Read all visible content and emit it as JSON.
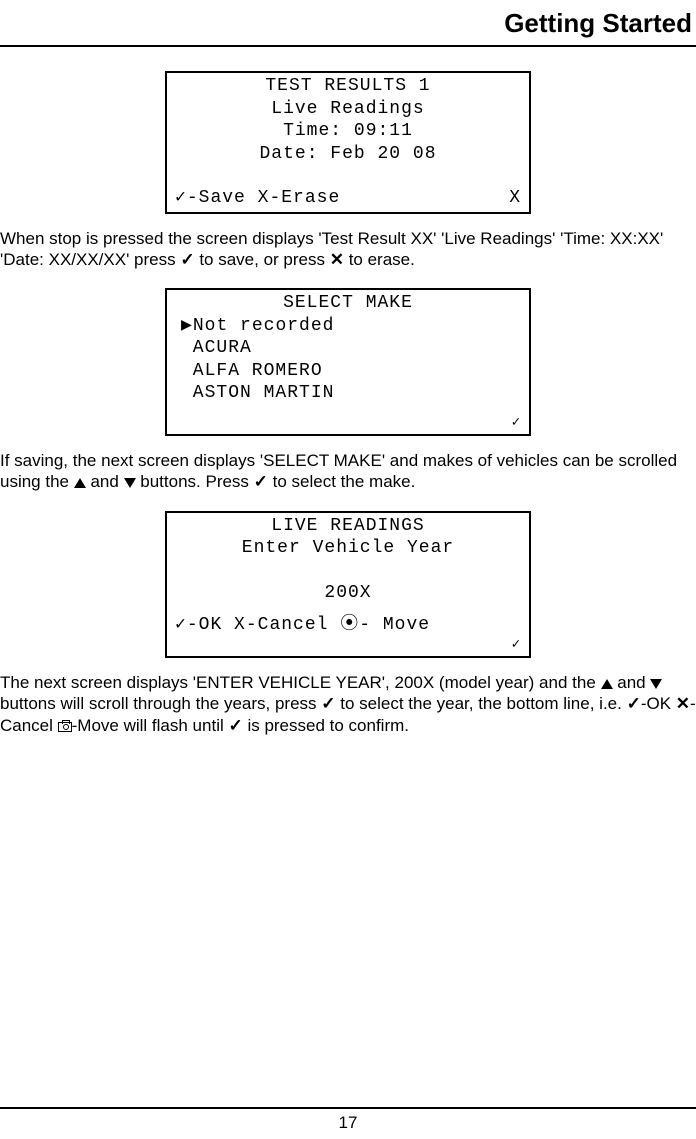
{
  "header": {
    "title": "Getting Started"
  },
  "footer": {
    "page_number": "17"
  },
  "lcd1": {
    "title": "TEST RESULTS 1",
    "line2": "Live Readings",
    "line3": "Time: 09:11",
    "line4": "Date: Feb 20 08",
    "footer_left": "✓-Save  X-Erase",
    "footer_right": "X"
  },
  "para1": {
    "t1": "When stop is pressed the screen displays 'Test Result XX' 'Live Readings' 'Time: XX:XX' 'Date: XX/XX/XX' press ",
    "t2": " to save, or press ",
    "t3": " to erase."
  },
  "lcd2": {
    "title": "SELECT MAKE",
    "items": [
      "▶Not recorded",
      " ACURA",
      " ALFA ROMERO",
      " ASTON MARTIN"
    ],
    "footer_right": "✓"
  },
  "para2": {
    "t1": "If saving, the next screen displays 'SELECT MAKE' and makes of vehicles can be scrolled using the ",
    "t2": " and ",
    "t3": " buttons. Press ",
    "t4": " to select the make."
  },
  "lcd3": {
    "title": "LIVE READINGS",
    "line2": "Enter Vehicle Year",
    "line3": "200X",
    "footer_left": "✓-OK X-Cancel ⦿- Move",
    "footer_right": "✓"
  },
  "para3": {
    "t1": "The next screen displays 'ENTER VEHICLE YEAR', 200X (model year) and the ",
    "t2": " and ",
    "t3": " buttons will scroll through the years, press ",
    "t4": " to select the year, the bottom line, i.e. ",
    "t5": "-OK ",
    "t6": "-Cancel ",
    "t7": "-Move will flash until ",
    "t8": " is pressed to confirm."
  },
  "icons": {
    "check": "✓",
    "x": "✕"
  }
}
